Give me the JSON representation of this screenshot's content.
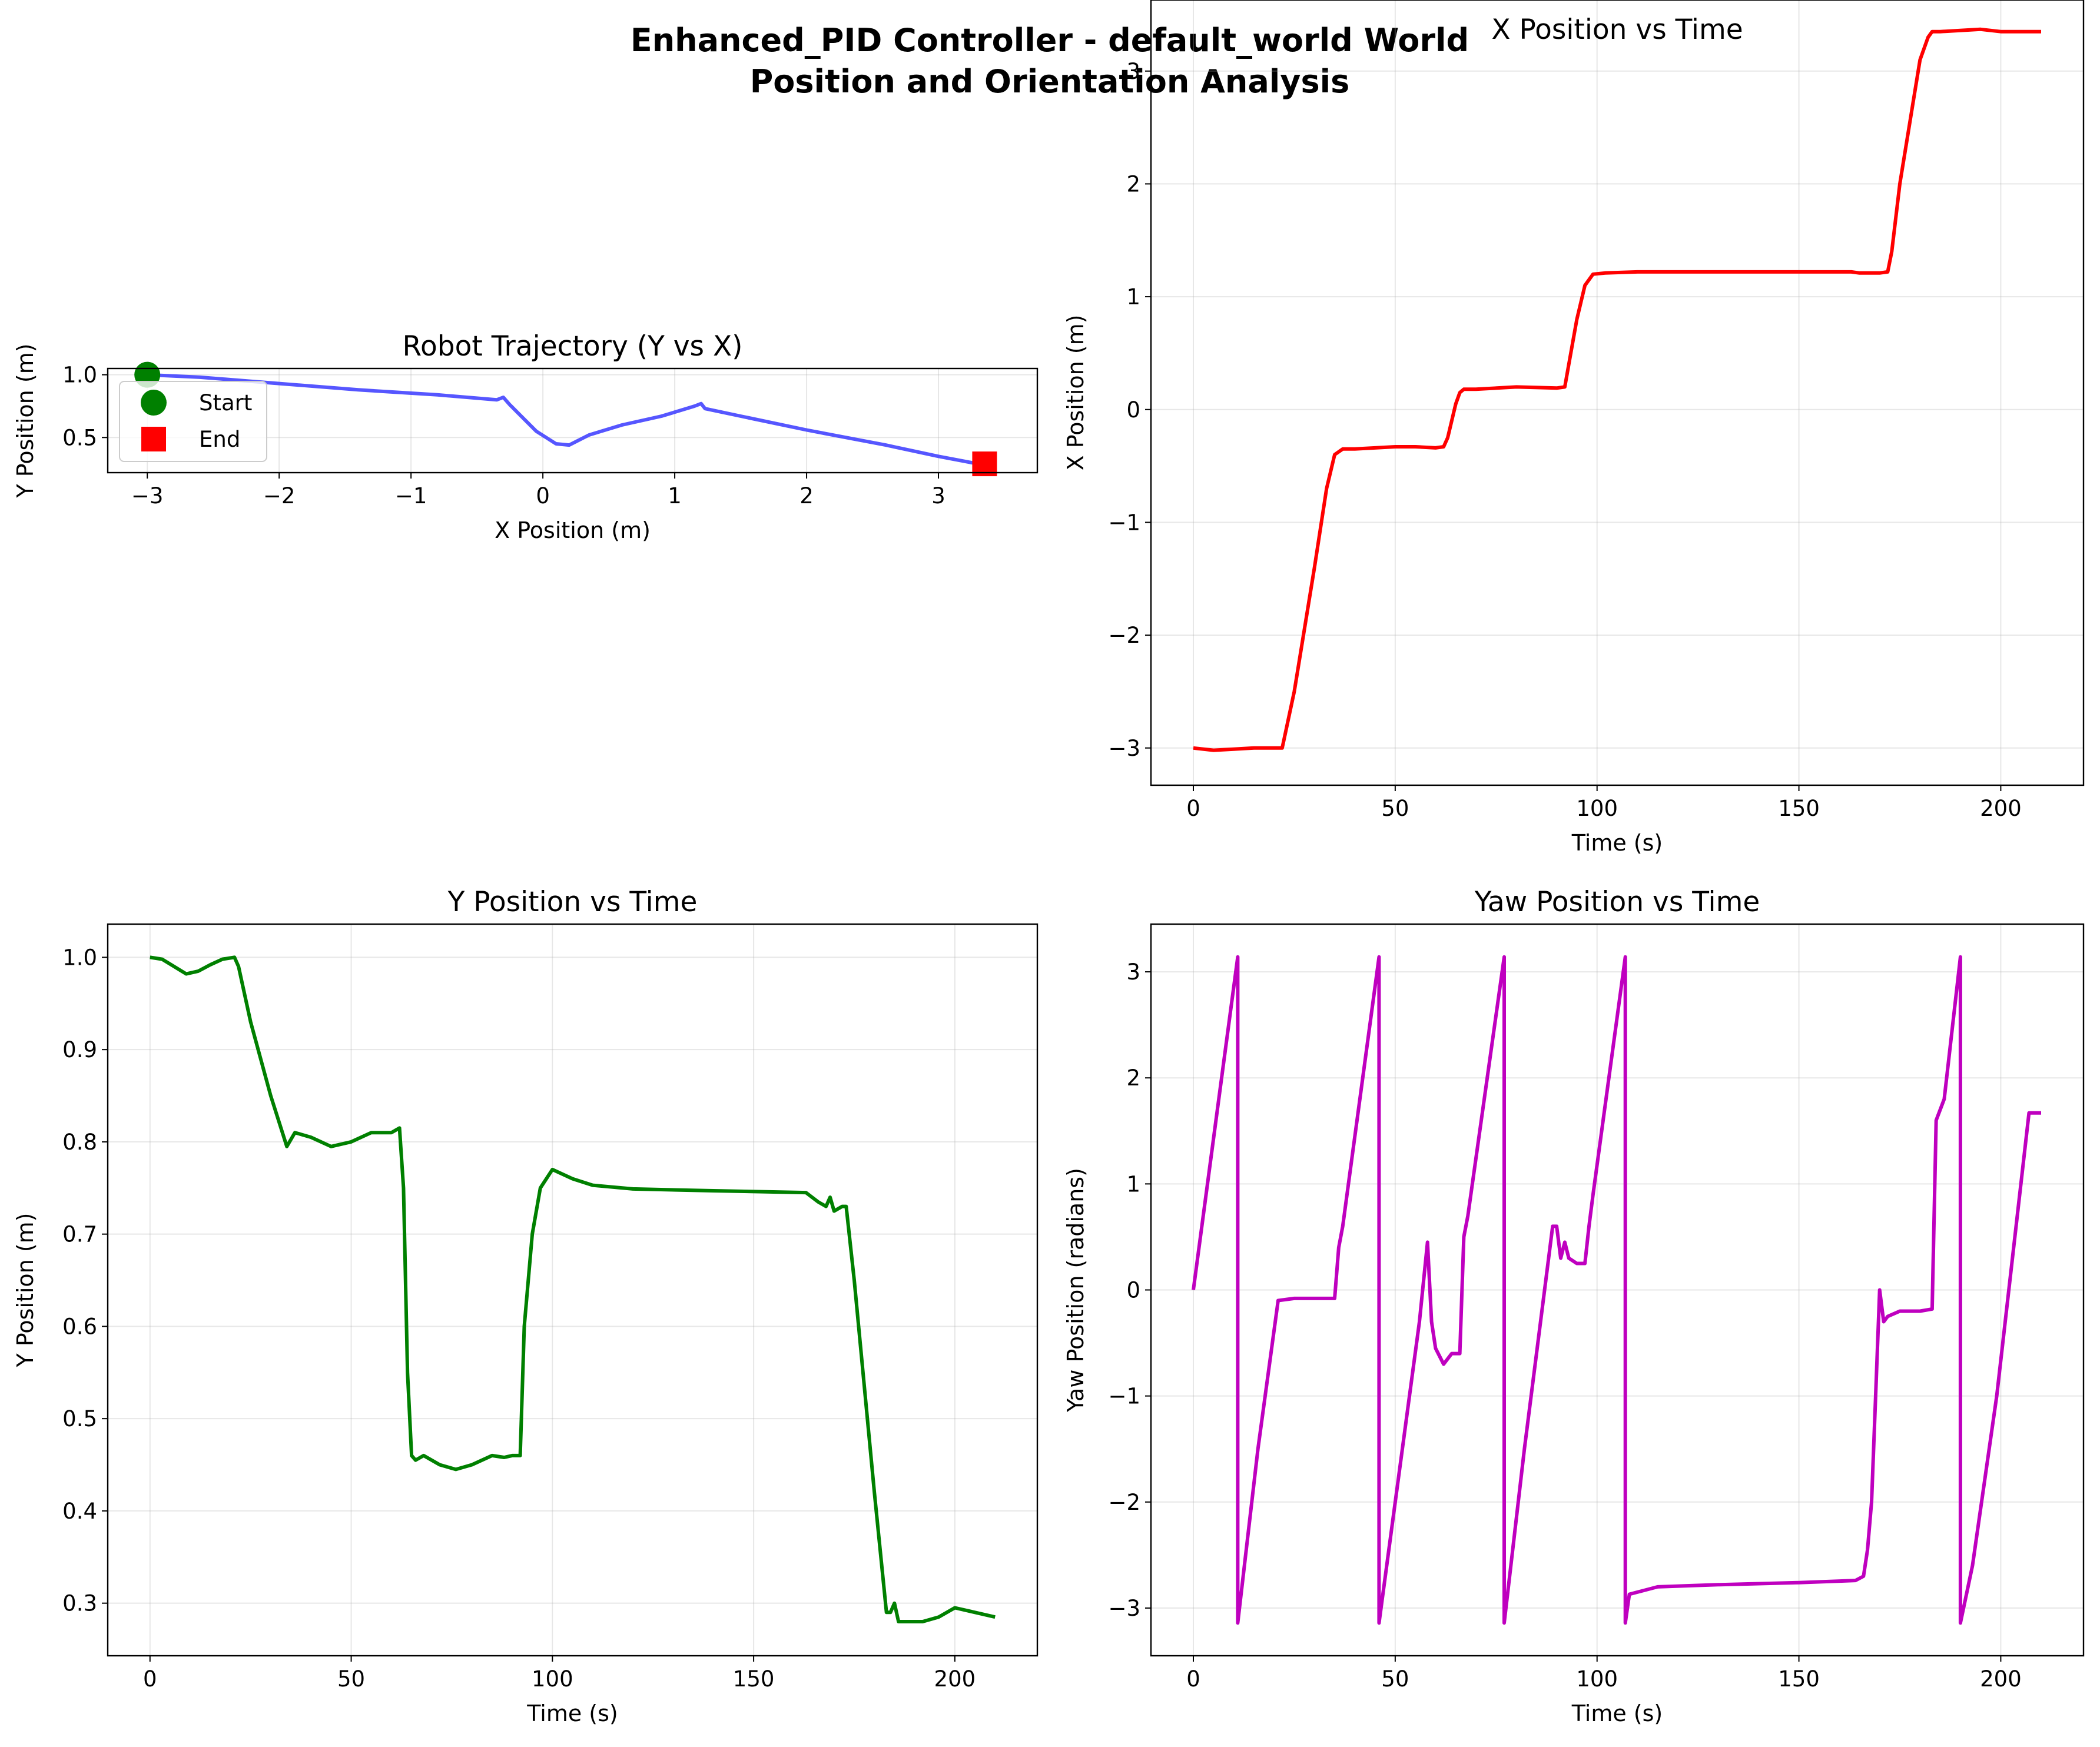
{
  "figure": {
    "title_line1": "Enhanced_PID Controller - default_world World",
    "title_line2": "Position and Orientation Analysis"
  },
  "chart_data": [
    {
      "id": "trajectory",
      "type": "line",
      "title": "Robot Trajectory (Y vs X)",
      "xlabel": "X Position (m)",
      "ylabel": "Y Position (m)",
      "xlim": [
        -3.3,
        3.75
      ],
      "ylim": [
        0.22,
        1.05
      ],
      "xticks": [
        -3,
        -2,
        -1,
        0,
        1,
        2,
        3
      ],
      "yticks": [
        0.5,
        1.0
      ],
      "grid": true,
      "equal_aspect": true,
      "legend_position": "upper-left",
      "color": "#4444ff",
      "x": [
        -3.0,
        -2.6,
        -2.0,
        -1.4,
        -0.8,
        -0.35,
        -0.3,
        -0.25,
        -0.05,
        0.1,
        0.2,
        0.35,
        0.6,
        0.9,
        1.15,
        1.2,
        1.23,
        1.5,
        2.0,
        2.6,
        3.0,
        3.3,
        3.35
      ],
      "y": [
        1.0,
        0.98,
        0.93,
        0.88,
        0.84,
        0.8,
        0.82,
        0.76,
        0.55,
        0.45,
        0.44,
        0.52,
        0.6,
        0.67,
        0.75,
        0.77,
        0.73,
        0.67,
        0.56,
        0.44,
        0.35,
        0.29,
        0.28
      ],
      "markers": [
        {
          "label": "Start",
          "x": -3.0,
          "y": 1.0,
          "shape": "circle",
          "color": "#008000"
        },
        {
          "label": "End",
          "x": 3.35,
          "y": 0.29,
          "shape": "square",
          "color": "#ff0000"
        }
      ]
    },
    {
      "id": "x_vs_time",
      "type": "line",
      "title": "X Position vs Time",
      "xlabel": "Time (s)",
      "ylabel": "X Position (m)",
      "xlim": [
        -10.5,
        220.5
      ],
      "ylim": [
        -3.33,
        3.63
      ],
      "xticks": [
        0,
        50,
        100,
        150,
        200
      ],
      "yticks": [
        -3,
        -2,
        -1,
        0,
        1,
        2,
        3
      ],
      "grid": true,
      "color": "#ff0000",
      "x": [
        0,
        5,
        10,
        15,
        22,
        25,
        30,
        33,
        35,
        37,
        40,
        50,
        55,
        60,
        62,
        63,
        65,
        66,
        67,
        70,
        80,
        90,
        92,
        93,
        95,
        97,
        99,
        102,
        110,
        130,
        150,
        163,
        165,
        170,
        172,
        173,
        175,
        180,
        182,
        183,
        185,
        190,
        195,
        200,
        210
      ],
      "y": [
        -3.0,
        -3.02,
        -3.01,
        -3.0,
        -3.0,
        -2.5,
        -1.4,
        -0.7,
        -0.4,
        -0.35,
        -0.35,
        -0.33,
        -0.33,
        -0.34,
        -0.33,
        -0.25,
        0.05,
        0.15,
        0.18,
        0.18,
        0.2,
        0.19,
        0.2,
        0.4,
        0.8,
        1.1,
        1.2,
        1.21,
        1.22,
        1.22,
        1.22,
        1.22,
        1.21,
        1.21,
        1.22,
        1.4,
        2.0,
        3.1,
        3.3,
        3.35,
        3.35,
        3.36,
        3.37,
        3.35,
        3.35
      ]
    },
    {
      "id": "y_vs_time",
      "type": "line",
      "title": "Y Position vs Time",
      "xlabel": "Time (s)",
      "ylabel": "Y Position (m)",
      "xlim": [
        -10.5,
        220.5
      ],
      "ylim": [
        0.243,
        1.036
      ],
      "xticks": [
        0,
        50,
        100,
        150,
        200
      ],
      "yticks": [
        0.3,
        0.4,
        0.5,
        0.6,
        0.7,
        0.8,
        0.9,
        1.0
      ],
      "grid": true,
      "color": "#008000",
      "x": [
        0,
        3,
        6,
        9,
        12,
        15,
        18,
        21,
        22,
        25,
        30,
        34,
        36,
        40,
        45,
        50,
        55,
        60,
        62,
        63,
        64,
        65,
        66,
        68,
        72,
        76,
        80,
        85,
        88,
        90,
        92,
        93,
        95,
        97,
        100,
        105,
        110,
        120,
        140,
        163,
        166,
        168,
        169,
        170,
        172,
        173,
        175,
        180,
        183,
        184,
        185,
        186,
        188,
        192,
        196,
        200,
        205,
        210
      ],
      "y": [
        1.0,
        0.998,
        0.99,
        0.982,
        0.985,
        0.992,
        0.998,
        1.0,
        0.99,
        0.93,
        0.85,
        0.795,
        0.81,
        0.805,
        0.795,
        0.8,
        0.81,
        0.81,
        0.815,
        0.75,
        0.55,
        0.46,
        0.455,
        0.46,
        0.45,
        0.445,
        0.45,
        0.46,
        0.458,
        0.46,
        0.46,
        0.6,
        0.7,
        0.75,
        0.77,
        0.76,
        0.753,
        0.749,
        0.747,
        0.745,
        0.735,
        0.73,
        0.74,
        0.725,
        0.73,
        0.73,
        0.65,
        0.42,
        0.29,
        0.29,
        0.3,
        0.28,
        0.28,
        0.28,
        0.285,
        0.295,
        0.29,
        0.285
      ]
    },
    {
      "id": "yaw_vs_time",
      "type": "line",
      "title": "Yaw Position vs Time",
      "xlabel": "Time (s)",
      "ylabel": "Yaw Position (radians)",
      "xlim": [
        -10.5,
        220.5
      ],
      "ylim": [
        -3.45,
        3.45
      ],
      "xticks": [
        0,
        50,
        100,
        150,
        200
      ],
      "yticks": [
        -3,
        -2,
        -1,
        0,
        1,
        2,
        3
      ],
      "grid": true,
      "color": "#bf00bf",
      "x": [
        0,
        7,
        11,
        11,
        16,
        21,
        25,
        35,
        36,
        37,
        46,
        46,
        50,
        56,
        58,
        59,
        60,
        62,
        64,
        66,
        67,
        68,
        77,
        77,
        82,
        89,
        90,
        91,
        92,
        93,
        95,
        97,
        98,
        99,
        107,
        107,
        108,
        110,
        115,
        130,
        150,
        164,
        166,
        167,
        168,
        169,
        170,
        171,
        172,
        175,
        180,
        183,
        184,
        186,
        190,
        190,
        193,
        199,
        207,
        210
      ],
      "y": [
        0.0,
        2.0,
        3.14,
        -3.14,
        -1.5,
        -0.1,
        -0.08,
        -0.08,
        0.4,
        0.6,
        3.14,
        -3.14,
        -2.0,
        -0.3,
        0.45,
        -0.3,
        -0.55,
        -0.7,
        -0.6,
        -0.6,
        0.5,
        0.7,
        3.14,
        -3.14,
        -1.5,
        0.6,
        0.6,
        0.3,
        0.45,
        0.3,
        0.25,
        0.25,
        0.6,
        0.9,
        3.14,
        -3.14,
        -2.87,
        -2.85,
        -2.8,
        -2.78,
        -2.76,
        -2.74,
        -2.7,
        -2.45,
        -2.0,
        -1.0,
        0.0,
        -0.3,
        -0.25,
        -0.2,
        -0.2,
        -0.18,
        1.6,
        1.8,
        3.14,
        -3.14,
        -2.6,
        -1.0,
        1.67,
        1.67
      ]
    }
  ]
}
